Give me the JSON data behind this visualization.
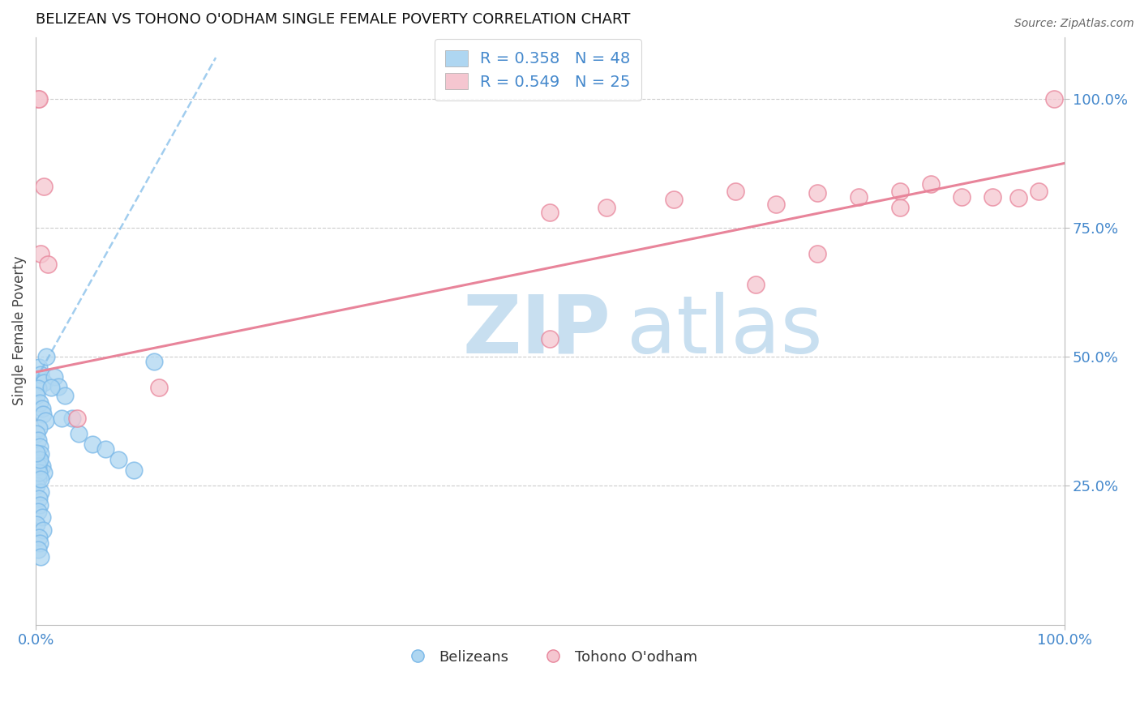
{
  "title": "BELIZEAN VS TOHONO O'ODHAM SINGLE FEMALE POVERTY CORRELATION CHART",
  "source": "Source: ZipAtlas.com",
  "ylabel": "Single Female Poverty",
  "xlim": [
    0.0,
    1.0
  ],
  "ylim": [
    -0.02,
    1.12
  ],
  "ytick_vals_right": [
    0.25,
    0.5,
    0.75,
    1.0
  ],
  "ytick_labels_right": [
    "25.0%",
    "50.0%",
    "75.0%",
    "100.0%"
  ],
  "blue_R": 0.358,
  "blue_N": 48,
  "pink_R": 0.549,
  "pink_N": 25,
  "blue_color": "#7ab8e8",
  "pink_color": "#e8849a",
  "blue_fill_color": "#aed6f1",
  "pink_fill_color": "#f5c6d0",
  "blue_scatter_x": [
    0.003,
    0.005,
    0.008,
    0.002,
    0.001,
    0.004,
    0.006,
    0.007,
    0.009,
    0.003,
    0.001,
    0.002,
    0.004,
    0.005,
    0.003,
    0.006,
    0.008,
    0.002,
    0.001,
    0.005,
    0.003,
    0.004,
    0.002,
    0.006,
    0.001,
    0.007,
    0.003,
    0.004,
    0.002,
    0.005,
    0.002,
    0.003,
    0.004,
    0.001,
    0.005,
    0.018,
    0.022,
    0.028,
    0.035,
    0.042,
    0.055,
    0.068,
    0.08,
    0.095,
    0.115,
    0.01,
    0.015,
    0.025
  ],
  "blue_scatter_y": [
    0.48,
    0.465,
    0.45,
    0.438,
    0.425,
    0.41,
    0.4,
    0.388,
    0.375,
    0.362,
    0.35,
    0.338,
    0.325,
    0.312,
    0.3,
    0.288,
    0.275,
    0.263,
    0.25,
    0.238,
    0.225,
    0.213,
    0.2,
    0.188,
    0.175,
    0.163,
    0.15,
    0.138,
    0.125,
    0.112,
    0.288,
    0.275,
    0.3,
    0.313,
    0.263,
    0.46,
    0.442,
    0.425,
    0.38,
    0.35,
    0.33,
    0.32,
    0.3,
    0.28,
    0.49,
    0.5,
    0.44,
    0.38
  ],
  "pink_scatter_x": [
    0.002,
    0.003,
    0.005,
    0.008,
    0.012,
    0.04,
    0.12,
    0.5,
    0.555,
    0.62,
    0.68,
    0.72,
    0.76,
    0.8,
    0.84,
    0.87,
    0.9,
    0.93,
    0.955,
    0.975,
    0.99,
    0.5,
    0.7,
    0.76,
    0.84
  ],
  "pink_scatter_y": [
    1.0,
    1.0,
    0.7,
    0.83,
    0.68,
    0.38,
    0.44,
    0.78,
    0.79,
    0.805,
    0.82,
    0.795,
    0.818,
    0.81,
    0.82,
    0.835,
    0.81,
    0.81,
    0.808,
    0.82,
    1.0,
    0.535,
    0.64,
    0.7,
    0.79
  ],
  "blue_line_x": [
    0.0,
    0.175
  ],
  "blue_line_y": [
    0.455,
    1.08
  ],
  "pink_line_x": [
    0.0,
    1.0
  ],
  "pink_line_y": [
    0.47,
    0.875
  ],
  "watermark_zip": "ZIP",
  "watermark_atlas": "atlas",
  "bg_color": "#ffffff",
  "grid_color": "#cccccc"
}
